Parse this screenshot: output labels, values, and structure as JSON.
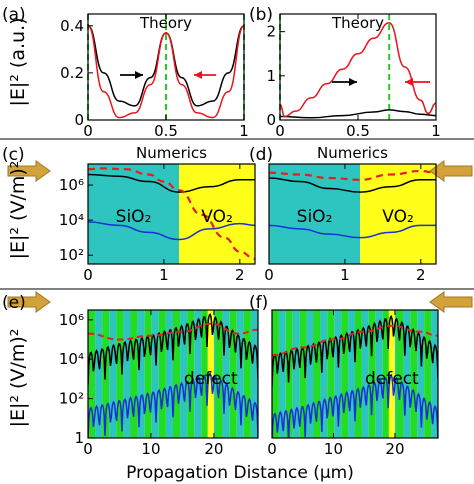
{
  "figure": {
    "ylabel_top": "|E|² (a.u.)",
    "ylabel_mid": "|E|² (V/m)²",
    "ylabel_bot": "|E|² (V/m)²",
    "xlabel": "Propagation Distance (μm)"
  },
  "colors": {
    "black": "#000000",
    "red": "#e8141e",
    "green_dash": "#22cc22",
    "blue": "#1a2fd6",
    "dashred": "#e81e1e",
    "cyan": "#2ec4c0",
    "yellow": "#ffff1a",
    "green_fill": "#22dd22",
    "arrow": "#d4a23a"
  },
  "chart_data": [
    {
      "panel": "(a)",
      "type": "line",
      "title": "Theory",
      "xlim": [
        0,
        1
      ],
      "ylim": [
        0,
        0.45
      ],
      "xticks": [
        "0",
        "0.5",
        "1"
      ],
      "yticks": [
        "0",
        "0.2",
        "0.4"
      ],
      "series": [
        {
          "color": "black",
          "x": [
            0,
            0.1,
            0.2,
            0.3,
            0.4,
            0.5,
            0.6,
            0.7,
            0.8,
            0.9,
            1.0
          ],
          "y": [
            0.4,
            0.2,
            0.08,
            0.06,
            0.18,
            0.37,
            0.18,
            0.06,
            0.08,
            0.2,
            0.4
          ]
        },
        {
          "color": "red",
          "x": [
            0,
            0.1,
            0.2,
            0.3,
            0.4,
            0.5,
            0.6,
            0.7,
            0.8,
            0.9,
            1.0
          ],
          "y": [
            0.4,
            0.12,
            0.01,
            0.03,
            0.15,
            0.37,
            0.15,
            0.03,
            0.01,
            0.12,
            0.4
          ]
        }
      ],
      "vlines": [
        0,
        0.5,
        1
      ]
    },
    {
      "panel": "(b)",
      "type": "line",
      "title": "Theory",
      "xlim": [
        0,
        1
      ],
      "ylim": [
        0,
        2.4
      ],
      "xticks": [
        "0",
        "0.5",
        "1"
      ],
      "yticks": [
        "0",
        "1",
        "2"
      ],
      "series": [
        {
          "color": "black",
          "x": [
            0,
            0.2,
            0.4,
            0.6,
            0.7,
            0.8,
            0.9,
            1.0
          ],
          "y": [
            0.08,
            0.05,
            0.1,
            0.18,
            0.23,
            0.19,
            0.13,
            0.1
          ]
        },
        {
          "color": "red",
          "x": [
            0,
            0.03,
            0.1,
            0.2,
            0.3,
            0.4,
            0.5,
            0.6,
            0.7,
            0.8,
            0.9,
            0.95,
            1.0
          ],
          "y": [
            0.35,
            0.08,
            0.2,
            0.5,
            0.82,
            1.15,
            1.5,
            1.85,
            2.2,
            1.2,
            0.45,
            0.15,
            0.38
          ]
        }
      ],
      "vlines": [
        0,
        0.7
      ]
    },
    {
      "panel": "(c)",
      "type": "line",
      "title": "Numerics",
      "xlim": [
        0,
        2.2
      ],
      "ylim_log10": [
        1.5,
        7.2
      ],
      "xticks": [
        "0",
        "1",
        "2"
      ],
      "yticks": [
        "10²",
        "10⁴",
        "10⁶"
      ],
      "regions": [
        {
          "label": "SiO₂",
          "from": 0,
          "to": 1.2,
          "color": "cyan"
        },
        {
          "label": "VO₂",
          "from": 1.2,
          "to": 2.2,
          "color": "yellow"
        }
      ],
      "series": [
        {
          "color": "black",
          "x": [
            0,
            0.4,
            0.8,
            1.2,
            1.6,
            2.0,
            2.2
          ],
          "y_log10": [
            6.6,
            6.5,
            6.2,
            5.6,
            5.9,
            6.3,
            6.3
          ]
        },
        {
          "color": "blue",
          "x": [
            0,
            0.4,
            0.8,
            1.2,
            1.6,
            2.0,
            2.2
          ],
          "y_log10": [
            3.9,
            3.7,
            3.3,
            2.9,
            3.5,
            3.8,
            3.7
          ]
        },
        {
          "color": "dashred",
          "dashed": true,
          "x": [
            0,
            0.2,
            0.5,
            0.8,
            1.0,
            1.2,
            1.5,
            1.8,
            2.0,
            2.2
          ],
          "y_log10": [
            6.9,
            6.95,
            6.9,
            6.6,
            6.2,
            5.7,
            4.3,
            3.0,
            2.2,
            1.8
          ]
        }
      ]
    },
    {
      "panel": "(d)",
      "type": "line",
      "title": "Numerics",
      "xlim": [
        0,
        2.2
      ],
      "ylim_log10": [
        1.5,
        7.2
      ],
      "xticks": [
        "0",
        "1",
        "2"
      ],
      "regions": [
        {
          "label": "SiO₂",
          "from": 0,
          "to": 1.2,
          "color": "cyan"
        },
        {
          "label": "VO₂",
          "from": 1.2,
          "to": 2.2,
          "color": "yellow"
        }
      ],
      "series": [
        {
          "color": "black",
          "x": [
            0,
            0.4,
            0.8,
            1.2,
            1.6,
            2.0,
            2.2
          ],
          "y_log10": [
            6.4,
            6.2,
            5.8,
            5.6,
            5.9,
            6.3,
            6.3
          ]
        },
        {
          "color": "blue",
          "x": [
            0,
            0.4,
            0.8,
            1.2,
            1.6,
            2.0,
            2.2
          ],
          "y_log10": [
            3.7,
            3.5,
            3.2,
            3.0,
            3.3,
            3.7,
            3.7
          ]
        },
        {
          "color": "dashred",
          "dashed": true,
          "x": [
            0,
            0.4,
            0.8,
            1.2,
            1.6,
            2.0,
            2.2
          ],
          "y_log10": [
            6.7,
            6.6,
            6.4,
            6.3,
            6.6,
            6.8,
            6.7
          ]
        }
      ]
    },
    {
      "panel": "(e)",
      "type": "line",
      "xlim": [
        0,
        27
      ],
      "ylim_log10": [
        0,
        6.5
      ],
      "xticks": [
        "0",
        "10",
        "20"
      ],
      "yticks": [
        "1",
        "10²",
        "10⁴",
        "10⁶"
      ],
      "regions": [
        {
          "pattern": "alternating green/cyan stripes",
          "from": 0,
          "to": 27
        },
        {
          "label": "defect",
          "from": 19.0,
          "to": 20.0,
          "color": "yellow"
        }
      ],
      "envelopes": [
        {
          "color": "black",
          "oscillating": true,
          "x": [
            0,
            5,
            10,
            15,
            19.5,
            24,
            27
          ],
          "y_peak_log10": [
            4.3,
            4.8,
            5.2,
            5.7,
            6.3,
            5.2,
            4.6
          ]
        },
        {
          "color": "blue",
          "oscillating": true,
          "x": [
            0,
            5,
            10,
            15,
            19.5,
            24,
            27
          ],
          "y_peak_log10": [
            1.5,
            1.9,
            2.3,
            2.8,
            3.3,
            2.3,
            1.7
          ]
        },
        {
          "color": "dashred",
          "dashed": true,
          "x": [
            0,
            5,
            10,
            15,
            19.5,
            24,
            27
          ],
          "y_log10": [
            5.3,
            5.0,
            5.2,
            5.4,
            5.8,
            5.3,
            5.5
          ]
        }
      ]
    },
    {
      "panel": "(f)",
      "type": "line",
      "xlim": [
        0,
        27
      ],
      "ylim_log10": [
        0,
        6.5
      ],
      "xticks": [
        "0",
        "10",
        "20"
      ],
      "regions": [
        {
          "pattern": "alternating green/cyan stripes",
          "from": 0,
          "to": 27
        },
        {
          "label": "defect",
          "from": 19.0,
          "to": 20.0,
          "color": "yellow"
        }
      ],
      "envelopes": [
        {
          "color": "black",
          "oscillating": true,
          "x": [
            0,
            5,
            10,
            15,
            19.5,
            24,
            27
          ],
          "y_peak_log10": [
            4.2,
            4.6,
            5.1,
            5.6,
            6.2,
            5.3,
            4.6
          ]
        },
        {
          "color": "blue",
          "oscillating": true,
          "x": [
            0,
            5,
            10,
            15,
            19.5,
            24,
            27
          ],
          "y_peak_log10": [
            1.2,
            1.6,
            2.1,
            2.6,
            3.2,
            2.2,
            1.5
          ]
        },
        {
          "color": "dashred",
          "dashed": true,
          "x": [
            0,
            5,
            10,
            15,
            19.5,
            24,
            27
          ],
          "y_log10": [
            4.2,
            4.6,
            5.0,
            5.4,
            5.7,
            5.4,
            5.2
          ]
        }
      ]
    }
  ]
}
